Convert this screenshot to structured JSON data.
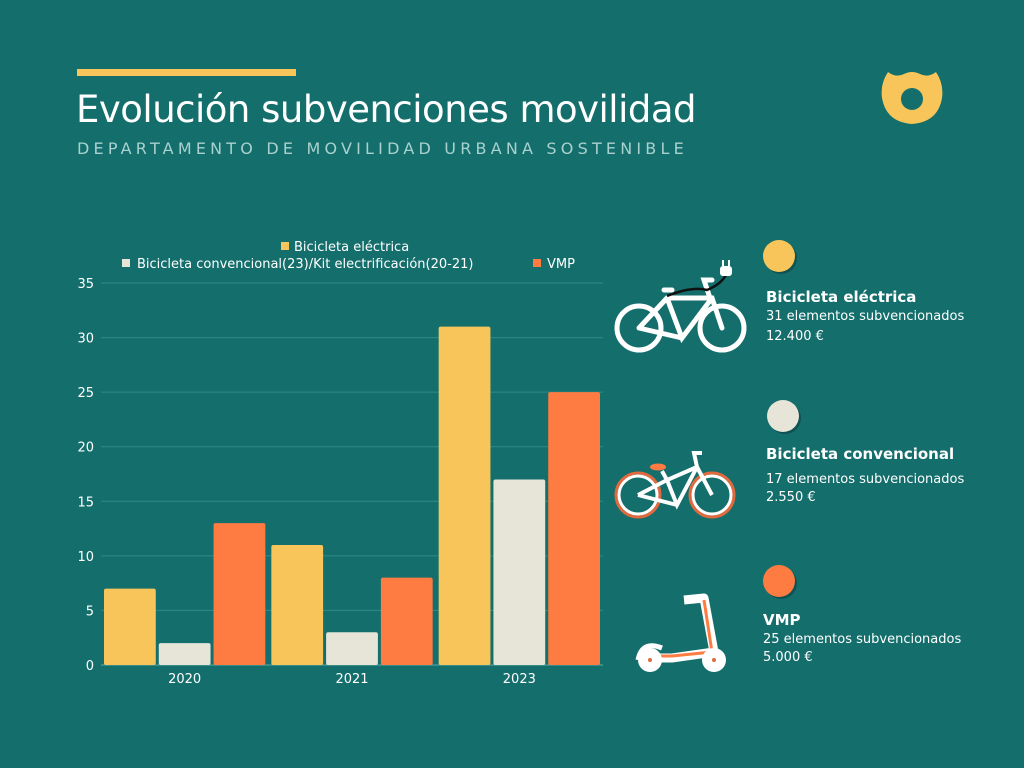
{
  "header": {
    "title": "Evolución subvenciones movilidad",
    "subtitle": "DEPARTAMENTO DE MOVILIDAD URBANA SOSTENIBLE"
  },
  "colors": {
    "background": "#146e6c",
    "accent": "#f7c559",
    "electric": "#f7c559",
    "conventional": "#e6e5d8",
    "vmp": "#fe7b41"
  },
  "chart_data": {
    "type": "bar",
    "categories": [
      "2020",
      "2021",
      "2023"
    ],
    "series": [
      {
        "name": "Bicicleta eléctrica",
        "color": "#f7c559",
        "values": [
          7,
          11,
          31
        ]
      },
      {
        "name": "Bicicleta convencional(23)/Kit electrificación(20-21)",
        "color": "#e6e5d8",
        "values": [
          2,
          3,
          17
        ]
      },
      {
        "name": "VMP",
        "color": "#fe7b41",
        "values": [
          13,
          8,
          25
        ]
      }
    ],
    "yticks": [
      "0",
      "5",
      "10",
      "15",
      "20",
      "25",
      "30",
      "35"
    ],
    "ylim": [
      0,
      35
    ],
    "grid": true,
    "legend": "top"
  },
  "cards": [
    {
      "icon": "electric-bicycle-icon",
      "name": "Bicicleta eléctrica",
      "count": "31 elementos subvencionados",
      "amount": "12.400 €",
      "color": "#f7c559"
    },
    {
      "icon": "bicycle-icon",
      "name": "Bicicleta convencional",
      "count": "17 elementos subvencionados",
      "amount": "2.550 €",
      "color": "#e6e5d8"
    },
    {
      "icon": "scooter-icon",
      "name": "VMP",
      "count": "25 elementos subvencionados",
      "amount": "5.000 €",
      "color": "#fe7b41"
    }
  ]
}
